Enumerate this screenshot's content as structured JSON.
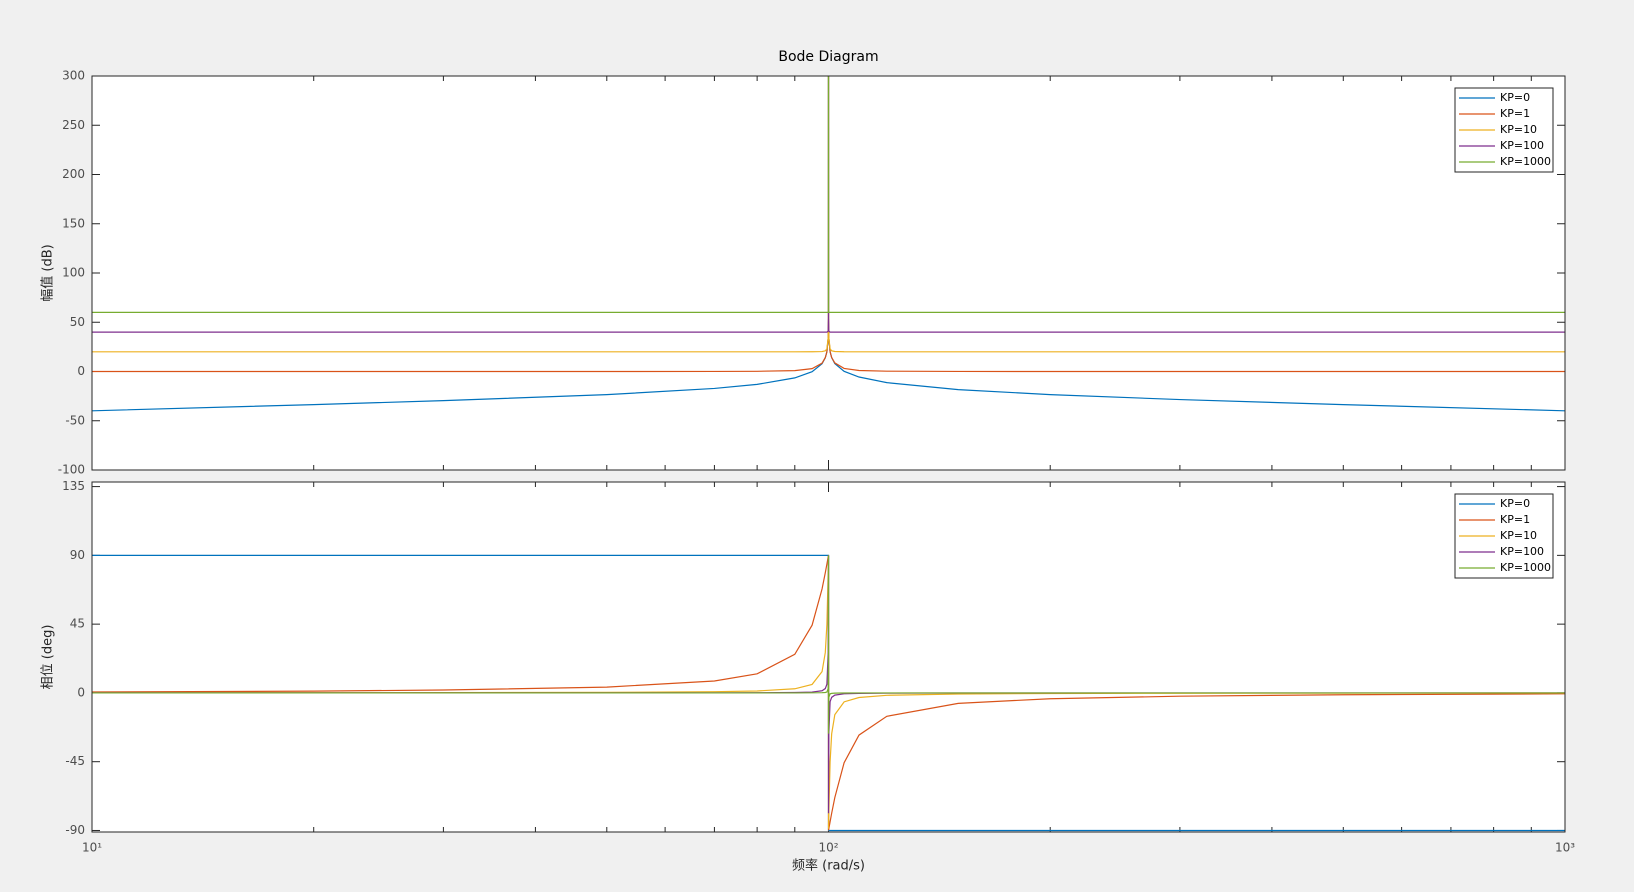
{
  "chart_data": [
    {
      "type": "line",
      "title": "Bode Diagram",
      "ylabel": "幅值 (dB)",
      "log_x": true,
      "legend": "upper-right",
      "x": [
        10,
        20,
        30,
        50,
        70,
        80,
        90,
        95,
        98,
        99,
        99.5,
        99.9,
        99.99,
        100,
        100.01,
        100.1,
        100.5,
        101,
        102,
        105,
        110,
        120,
        150,
        200,
        300,
        500,
        1000
      ],
      "xlim": [
        10,
        1000
      ],
      "xticks": [
        {
          "value": 10,
          "label": "10¹"
        },
        {
          "value": 100,
          "label": "10²"
        },
        {
          "value": 1000,
          "label": "10³"
        }
      ],
      "xminorticks": [
        20,
        30,
        40,
        50,
        60,
        70,
        80,
        90,
        200,
        300,
        400,
        500,
        600,
        700,
        800,
        900
      ],
      "ylim": [
        -100,
        300
      ],
      "yticks": [
        -100,
        -50,
        0,
        50,
        100,
        150,
        200,
        250,
        300
      ],
      "series": [
        {
          "name": "KP=0",
          "color": "#0072BD",
          "values": [
            -39.9,
            -33.6,
            -29.6,
            -23.5,
            -17.2,
            -13.1,
            -6.5,
            -0.2,
            7.9,
            13.9,
            20.0,
            34.0,
            54.0,
            300,
            54.0,
            34.0,
            20.0,
            14.0,
            8.0,
            0.2,
            -5.6,
            -11.3,
            -18.4,
            -23.5,
            -28.5,
            -33.6,
            -39.9
          ]
        },
        {
          "name": "KP=1",
          "color": "#D95319",
          "values": [
            0,
            0,
            0,
            0.02,
            0.08,
            0.21,
            0.87,
            2.9,
            8.5,
            14.1,
            20.0,
            34.0,
            54.0,
            300,
            54.0,
            34.0,
            20.0,
            14.2,
            8.7,
            3.1,
            1.05,
            0.31,
            0.06,
            0.02,
            0,
            0,
            0
          ]
        },
        {
          "name": "KP=10",
          "color": "#EDB120",
          "values": [
            20,
            20,
            20,
            20,
            20,
            20,
            20,
            20.04,
            20.26,
            20.96,
            23.0,
            34.1,
            54.0,
            300,
            54.0,
            34.1,
            23.0,
            21.0,
            20.3,
            20.05,
            20,
            20,
            20,
            20,
            20,
            20,
            20
          ]
        },
        {
          "name": "KP=100",
          "color": "#7E2F8E",
          "values": [
            40,
            40,
            40,
            40,
            40,
            40,
            40,
            40,
            40,
            40,
            40,
            41.0,
            54.1,
            300,
            54.1,
            41.0,
            40,
            40,
            40,
            40,
            40,
            40,
            40,
            40,
            40,
            40,
            40
          ]
        },
        {
          "name": "KP=1000",
          "color": "#77AC30",
          "values": [
            60,
            60,
            60,
            60,
            60,
            60,
            60,
            60,
            60,
            60,
            60,
            60,
            61.0,
            300,
            61.0,
            60,
            60,
            60,
            60,
            60,
            60,
            60,
            60,
            60,
            60,
            60,
            60
          ]
        }
      ]
    },
    {
      "type": "line",
      "ylabel": "相位 (deg)",
      "xlabel": "频率  (rad/s)",
      "log_x": true,
      "legend": "upper-right",
      "x": [
        10,
        20,
        30,
        50,
        70,
        80,
        90,
        95,
        98,
        99,
        99.5,
        99.9,
        99.99,
        100,
        100.01,
        100.1,
        100.5,
        101,
        102,
        105,
        110,
        120,
        150,
        200,
        300,
        500,
        1000
      ],
      "xlim": [
        10,
        1000
      ],
      "xticks": [
        {
          "value": 10,
          "label": "10¹"
        },
        {
          "value": 100,
          "label": "10²"
        },
        {
          "value": 1000,
          "label": "10³"
        }
      ],
      "xminorticks": [
        20,
        30,
        40,
        50,
        60,
        70,
        80,
        90,
        200,
        300,
        400,
        500,
        600,
        700,
        800,
        900
      ],
      "ylim": [
        -91,
        138
      ],
      "yticks": [
        -90,
        -45,
        0,
        45,
        90,
        135
      ],
      "series": [
        {
          "name": "KP=0",
          "color": "#0072BD",
          "values": [
            90,
            90,
            90,
            90,
            90,
            90,
            90,
            90,
            90,
            90,
            90,
            90,
            90,
            90,
            -90,
            -90,
            -90,
            -90,
            -90,
            -90,
            -90,
            -90,
            -90,
            -90,
            -90,
            -90,
            -90
          ]
        },
        {
          "name": "KP=1",
          "color": "#D95319",
          "values": [
            0.58,
            1.19,
            1.89,
            3.81,
            7.82,
            12.5,
            25.3,
            44.3,
            68.0,
            78.6,
            84.3,
            88.9,
            89.9,
            90,
            -89.9,
            -88.9,
            -84.3,
            -78.7,
            -68.4,
            -45.7,
            -27.6,
            -15.3,
            -6.84,
            -3.81,
            -2.15,
            -1.19,
            -0.58
          ]
        },
        {
          "name": "KP=10",
          "color": "#EDB120",
          "values": [
            0.06,
            0.12,
            0.19,
            0.38,
            0.79,
            1.27,
            2.71,
            5.56,
            13.9,
            26.4,
            44.9,
            78.7,
            88.9,
            90,
            -88.9,
            -78.7,
            -45.1,
            -26.7,
            -14.2,
            -5.85,
            -3.0,
            -1.56,
            -0.69,
            -0.38,
            -0.21,
            -0.12,
            -0.06
          ]
        },
        {
          "name": "KP=100",
          "color": "#7E2F8E",
          "values": [
            0.01,
            0.01,
            0.02,
            0.04,
            0.08,
            0.13,
            0.27,
            0.56,
            1.42,
            2.85,
            5.7,
            26.6,
            78.7,
            90,
            -78.7,
            -26.6,
            -5.73,
            -2.88,
            -1.45,
            -0.59,
            -0.3,
            -0.16,
            -0.07,
            -0.04,
            -0.02,
            -0.01,
            -0.01
          ]
        },
        {
          "name": "KP=1000",
          "color": "#77AC30",
          "values": [
            0,
            0,
            0,
            0,
            0,
            0,
            0,
            0.06,
            0.14,
            0.29,
            0.57,
            2.86,
            26.6,
            90,
            -26.6,
            -2.86,
            -0.57,
            -0.29,
            -0.14,
            -0.06,
            -0.03,
            0,
            0,
            0,
            0,
            0,
            0
          ]
        }
      ]
    }
  ]
}
